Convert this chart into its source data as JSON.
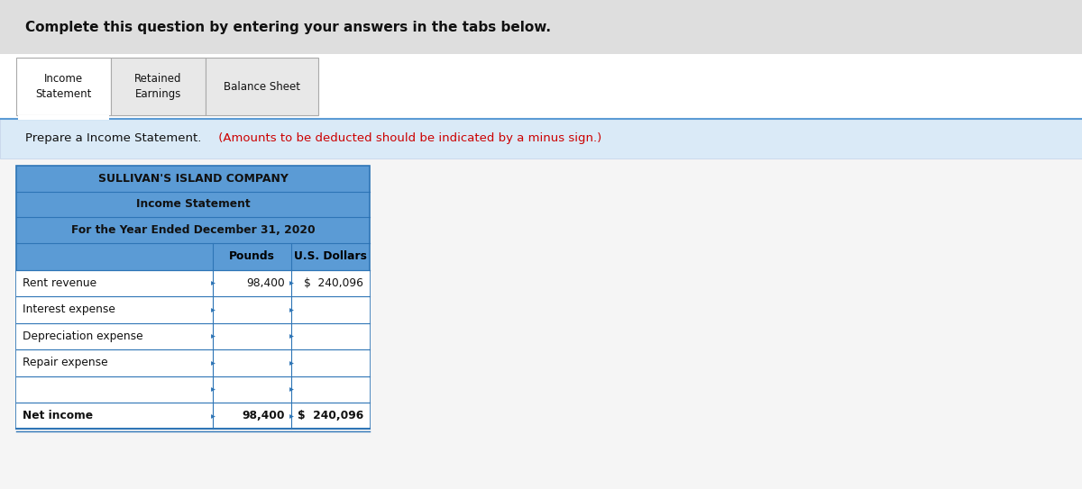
{
  "header_text": "Complete this question by entering your answers in the tabs below.",
  "header_bg": "#dedede",
  "page_bg": "#f5f5f5",
  "tab_area_bg": "#ffffff",
  "tab_border_color": "#aaaaaa",
  "active_tab_bottom_color": "#5b9bd5",
  "instruction_bg": "#daeaf7",
  "instruction_text": "Prepare a Income Statement.",
  "instruction_red": " (Amounts to be deducted should be indicated by a minus sign.)",
  "table_header_bg": "#5b9bd5",
  "table_border": "#2e75b6",
  "table_white_bg": "#ffffff",
  "company_name": "SULLIVAN'S ISLAND COMPANY",
  "statement_title": "Income Statement",
  "period": "For the Year Ended December 31, 2020",
  "col1_header": "Pounds",
  "col2_header": "U.S. Dollars",
  "tabs": [
    {
      "label": "Income\nStatement",
      "active": true
    },
    {
      "label": "Retained\nEarnings",
      "active": false
    },
    {
      "label": "Balance Sheet",
      "active": false
    }
  ],
  "rows": [
    {
      "label": "Rent revenue",
      "pounds": "98,400",
      "dollars": "$  240,096",
      "last": false
    },
    {
      "label": "Interest expense",
      "pounds": "",
      "dollars": "",
      "last": false
    },
    {
      "label": "Depreciation expense",
      "pounds": "",
      "dollars": "",
      "last": false
    },
    {
      "label": "Repair expense",
      "pounds": "",
      "dollars": "",
      "last": false
    },
    {
      "label": "",
      "pounds": "",
      "dollars": "",
      "last": false
    },
    {
      "label": "Net income",
      "pounds": "98,400",
      "dollars": "$  240,096",
      "last": true
    }
  ]
}
